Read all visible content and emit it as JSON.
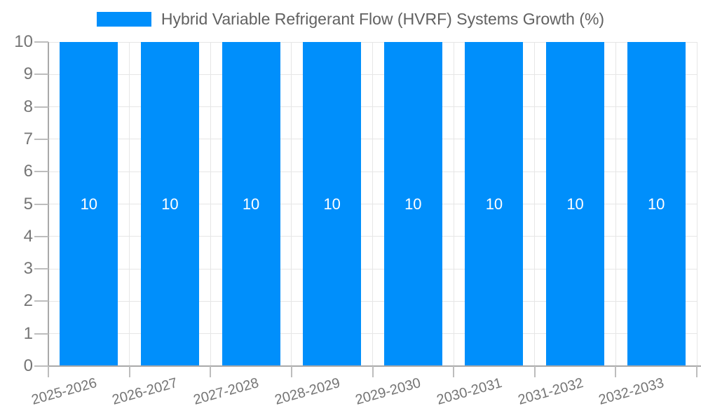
{
  "legend": {
    "items": [
      {
        "label": "Hybrid Variable Refrigerant Flow (HVRF) Systems Growth (%)",
        "color": "#008FFB"
      }
    ]
  },
  "chart_data": {
    "type": "bar",
    "title": "Hybrid Variable Refrigerant Flow (HVRF) Systems Growth (%)",
    "categories": [
      "2025-2026",
      "2026-2027",
      "2027-2028",
      "2028-2029",
      "2029-2030",
      "2030-2031",
      "2031-2032",
      "2032-2033"
    ],
    "series": [
      {
        "name": "Hybrid Variable Refrigerant Flow (HVRF) Systems Growth (%)",
        "values": [
          10,
          10,
          10,
          10,
          10,
          10,
          10,
          10
        ]
      }
    ],
    "bar_value_labels": [
      "10",
      "10",
      "10",
      "10",
      "10",
      "10",
      "10",
      "10"
    ],
    "xlabel": "",
    "ylabel": "",
    "ylim": [
      0,
      10
    ],
    "yticks": [
      0,
      1,
      2,
      3,
      4,
      5,
      6,
      7,
      8,
      9,
      10
    ],
    "grid": true,
    "legend_position": "top",
    "x_label_rotation_deg": -15.5,
    "colors": {
      "bar": "#008FFB",
      "bar_label": "#FFFFFF",
      "axis_labels": "#757575",
      "legend_text": "#616161",
      "gridline": "#E6E6E6",
      "axis_line": "#A9A9A9",
      "tick": "#BDBDBD"
    }
  }
}
